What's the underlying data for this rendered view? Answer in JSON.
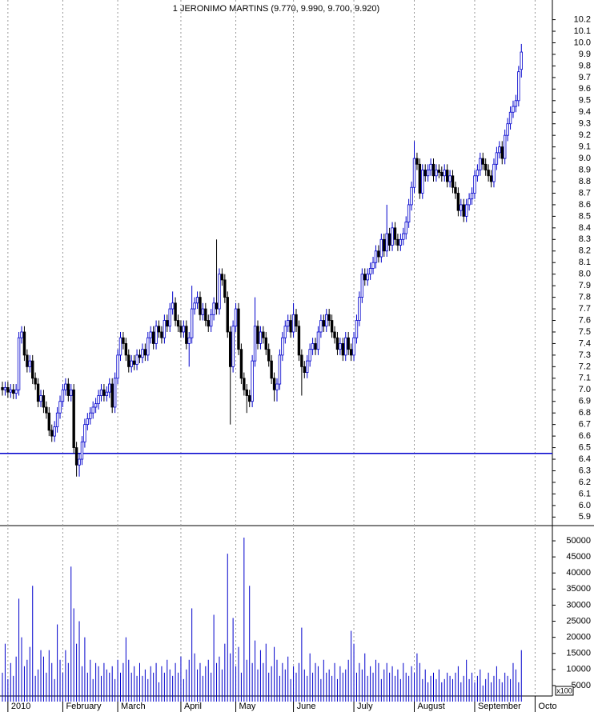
{
  "chart_data": {
    "type": "candlestick",
    "title": "1 JERONIMO MARTINS (9.770, 9.990, 9.700, 9.920)",
    "up_color": "#0000cc",
    "down_color": "#000000",
    "volume_color": "#0000cc",
    "reference_line": 6.45,
    "reference_color": "#0000cc",
    "open": [
      7.02,
      7.0,
      7.02,
      6.98,
      7.0,
      6.97,
      7.0,
      7.45,
      7.5,
      7.3,
      7.2,
      7.25,
      7.1,
      7.05,
      6.9,
      6.95,
      6.85,
      6.8,
      6.65,
      6.6,
      6.68,
      6.8,
      6.9,
      7.0,
      7.05,
      6.95,
      7.0,
      6.5,
      6.35,
      6.4,
      6.55,
      6.7,
      6.75,
      6.8,
      6.85,
      6.88,
      6.95,
      7.0,
      6.95,
      6.98,
      7.05,
      6.85,
      7.1,
      7.3,
      7.45,
      7.4,
      7.3,
      7.2,
      7.25,
      7.22,
      7.3,
      7.28,
      7.35,
      7.3,
      7.45,
      7.5,
      7.4,
      7.55,
      7.5,
      7.45,
      7.6,
      7.55,
      7.7,
      7.75,
      7.6,
      7.55,
      7.5,
      7.55,
      7.4,
      7.45,
      7.7,
      7.75,
      7.8,
      7.65,
      7.7,
      7.6,
      7.55,
      7.65,
      7.75,
      7.7,
      8.0,
      7.95,
      7.8,
      7.5,
      7.2,
      7.55,
      7.7,
      7.35,
      7.1,
      7.0,
      6.95,
      6.9,
      7.25,
      7.55,
      7.4,
      7.5,
      7.45,
      7.35,
      7.25,
      7.1,
      7.0,
      7.05,
      7.3,
      7.45,
      7.55,
      7.6,
      7.5,
      7.65,
      7.55,
      7.3,
      7.2,
      7.15,
      7.25,
      7.35,
      7.4,
      7.35,
      7.5,
      7.6,
      7.55,
      7.65,
      7.6,
      7.5,
      7.45,
      7.35,
      7.4,
      7.3,
      7.45,
      7.35,
      7.3,
      7.45,
      7.6,
      7.8,
      8.0,
      7.95,
      8.0,
      8.05,
      8.1,
      8.2,
      8.15,
      8.3,
      8.2,
      8.35,
      8.25,
      8.4,
      8.3,
      8.25,
      8.3,
      8.35,
      8.45,
      8.6,
      8.75,
      9.0,
      8.95,
      8.7,
      8.9,
      8.85,
      8.9,
      8.95,
      8.85,
      8.9,
      8.88,
      8.85,
      8.9,
      8.8,
      8.85,
      8.75,
      8.7,
      8.55,
      8.6,
      8.5,
      8.6,
      8.65,
      8.7,
      8.85,
      8.9,
      9.0,
      8.95,
      8.9,
      8.85,
      8.8,
      8.95,
      9.05,
      9.1,
      9.0,
      9.2,
      9.3,
      9.4,
      9.45,
      9.5,
      9.77
    ],
    "high": [
      7.07,
      7.07,
      7.07,
      7.05,
      7.05,
      7.05,
      7.5,
      7.55,
      7.55,
      7.35,
      7.3,
      7.3,
      7.15,
      7.1,
      7.0,
      7.0,
      6.9,
      6.85,
      6.7,
      6.73,
      6.85,
      6.95,
      7.05,
      7.1,
      7.1,
      7.05,
      7.05,
      6.55,
      6.45,
      6.6,
      6.75,
      6.8,
      6.85,
      6.9,
      6.93,
      7.0,
      7.05,
      7.05,
      7.03,
      7.1,
      7.1,
      7.15,
      7.35,
      7.5,
      7.5,
      7.45,
      7.35,
      7.3,
      7.3,
      7.35,
      7.35,
      7.4,
      7.4,
      7.5,
      7.55,
      7.55,
      7.6,
      7.6,
      7.55,
      7.65,
      7.65,
      7.75,
      7.85,
      7.8,
      7.65,
      7.6,
      7.6,
      7.6,
      7.5,
      7.9,
      7.8,
      7.85,
      7.85,
      7.75,
      7.75,
      7.65,
      7.7,
      7.8,
      8.3,
      8.05,
      8.05,
      8.0,
      7.85,
      7.55,
      7.6,
      7.75,
      7.75,
      7.4,
      7.15,
      7.05,
      7.0,
      7.3,
      7.8,
      7.6,
      7.55,
      7.55,
      7.5,
      7.4,
      7.3,
      7.15,
      7.1,
      7.35,
      7.5,
      7.6,
      7.65,
      7.65,
      7.75,
      7.7,
      7.6,
      7.35,
      7.25,
      7.3,
      7.4,
      7.45,
      7.45,
      7.55,
      7.65,
      7.65,
      7.7,
      7.7,
      7.65,
      7.55,
      7.5,
      7.45,
      7.45,
      7.5,
      7.5,
      7.4,
      7.5,
      7.65,
      7.85,
      8.05,
      8.05,
      8.05,
      8.1,
      8.15,
      8.25,
      8.25,
      8.35,
      8.35,
      8.6,
      8.4,
      8.45,
      8.45,
      8.35,
      8.35,
      8.4,
      8.5,
      8.65,
      8.8,
      9.15,
      9.05,
      9.0,
      8.95,
      8.95,
      8.95,
      9.0,
      9.0,
      8.95,
      8.95,
      8.93,
      8.95,
      8.95,
      8.9,
      8.9,
      8.8,
      8.75,
      8.65,
      8.65,
      8.65,
      8.7,
      8.75,
      8.9,
      8.95,
      9.05,
      9.05,
      9.0,
      8.95,
      8.9,
      9.0,
      9.1,
      9.15,
      9.15,
      9.25,
      9.35,
      9.45,
      9.5,
      9.55,
      9.8,
      9.99
    ],
    "low": [
      6.95,
      6.95,
      6.93,
      6.93,
      6.92,
      6.92,
      6.95,
      7.4,
      7.25,
      7.15,
      7.15,
      7.05,
      7.0,
      6.85,
      6.85,
      6.8,
      6.75,
      6.6,
      6.55,
      6.55,
      6.63,
      6.75,
      6.85,
      6.95,
      6.9,
      6.9,
      6.45,
      6.25,
      6.25,
      6.35,
      6.5,
      6.65,
      6.7,
      6.75,
      6.8,
      6.83,
      6.9,
      6.9,
      6.9,
      6.93,
      6.8,
      6.8,
      7.05,
      7.25,
      7.35,
      7.25,
      7.15,
      7.15,
      7.17,
      7.17,
      7.23,
      7.23,
      7.25,
      7.25,
      7.4,
      7.35,
      7.35,
      7.45,
      7.4,
      7.4,
      7.5,
      7.5,
      7.65,
      7.55,
      7.5,
      7.45,
      7.45,
      7.35,
      7.2,
      7.4,
      7.65,
      7.7,
      7.6,
      7.6,
      7.55,
      7.5,
      7.5,
      7.6,
      7.65,
      7.65,
      7.9,
      7.75,
      7.45,
      6.7,
      7.15,
      7.5,
      7.3,
      7.05,
      6.95,
      6.8,
      6.85,
      6.85,
      7.2,
      7.35,
      7.35,
      7.4,
      7.3,
      7.2,
      7.05,
      6.9,
      6.9,
      7.0,
      7.25,
      7.4,
      7.5,
      7.45,
      7.45,
      7.5,
      7.25,
      6.95,
      7.1,
      7.1,
      7.2,
      7.3,
      7.3,
      7.3,
      7.45,
      7.5,
      7.5,
      7.55,
      7.45,
      7.4,
      7.3,
      7.3,
      7.25,
      7.25,
      7.3,
      7.25,
      7.25,
      7.4,
      7.55,
      7.75,
      7.9,
      7.9,
      7.95,
      8.0,
      8.05,
      8.1,
      8.1,
      8.15,
      8.15,
      8.2,
      8.2,
      8.25,
      8.2,
      8.2,
      8.25,
      8.3,
      8.4,
      8.55,
      8.7,
      8.9,
      8.65,
      8.65,
      8.8,
      8.8,
      8.85,
      8.8,
      8.8,
      8.83,
      8.8,
      8.8,
      8.75,
      8.75,
      8.7,
      8.65,
      8.5,
      8.5,
      8.45,
      8.45,
      8.55,
      8.6,
      8.65,
      8.8,
      8.85,
      8.9,
      8.85,
      8.8,
      8.75,
      8.75,
      8.9,
      9.0,
      8.95,
      8.95,
      9.15,
      9.25,
      9.35,
      9.4,
      9.45,
      9.7
    ],
    "close": [
      7.0,
      7.02,
      6.98,
      7.0,
      6.97,
      7.0,
      7.45,
      7.5,
      7.3,
      7.2,
      7.25,
      7.1,
      7.05,
      6.9,
      6.95,
      6.85,
      6.8,
      6.65,
      6.6,
      6.68,
      6.8,
      6.9,
      7.0,
      7.05,
      6.95,
      7.0,
      6.5,
      6.35,
      6.4,
      6.55,
      6.7,
      6.75,
      6.8,
      6.85,
      6.88,
      6.95,
      7.0,
      6.95,
      6.98,
      7.05,
      6.85,
      7.1,
      7.3,
      7.45,
      7.4,
      7.3,
      7.2,
      7.25,
      7.22,
      7.3,
      7.28,
      7.35,
      7.3,
      7.45,
      7.5,
      7.4,
      7.55,
      7.5,
      7.45,
      7.6,
      7.55,
      7.7,
      7.75,
      7.6,
      7.55,
      7.5,
      7.55,
      7.4,
      7.45,
      7.7,
      7.75,
      7.8,
      7.65,
      7.7,
      7.6,
      7.55,
      7.65,
      7.75,
      7.7,
      8.0,
      7.95,
      7.8,
      7.5,
      7.2,
      7.55,
      7.7,
      7.35,
      7.1,
      7.0,
      6.95,
      6.9,
      7.25,
      7.55,
      7.4,
      7.5,
      7.45,
      7.35,
      7.25,
      7.1,
      7.0,
      7.05,
      7.3,
      7.45,
      7.55,
      7.6,
      7.5,
      7.65,
      7.55,
      7.3,
      7.2,
      7.15,
      7.25,
      7.35,
      7.4,
      7.35,
      7.5,
      7.6,
      7.55,
      7.65,
      7.6,
      7.5,
      7.45,
      7.35,
      7.4,
      7.3,
      7.45,
      7.35,
      7.3,
      7.45,
      7.6,
      7.8,
      8.0,
      7.95,
      8.0,
      8.05,
      8.1,
      8.2,
      8.15,
      8.3,
      8.2,
      8.35,
      8.25,
      8.4,
      8.3,
      8.25,
      8.3,
      8.35,
      8.45,
      8.6,
      8.75,
      9.0,
      8.95,
      8.7,
      8.9,
      8.85,
      8.9,
      8.95,
      8.85,
      8.9,
      8.88,
      8.85,
      8.9,
      8.8,
      8.85,
      8.75,
      8.7,
      8.55,
      8.6,
      8.5,
      8.6,
      8.65,
      8.7,
      8.85,
      8.9,
      9.0,
      8.95,
      8.9,
      8.85,
      8.8,
      8.95,
      9.05,
      9.1,
      9.0,
      9.2,
      9.3,
      9.4,
      9.45,
      9.5,
      9.75,
      9.92
    ],
    "volume": [
      9000,
      18000,
      7000,
      12000,
      8000,
      14000,
      32000,
      20000,
      11000,
      13000,
      17000,
      36000,
      8000,
      10000,
      16000,
      14000,
      9000,
      16000,
      12000,
      7000,
      24000,
      13000,
      9000,
      16000,
      12000,
      42000,
      29000,
      18000,
      25000,
      11000,
      20000,
      9000,
      13000,
      7000,
      12000,
      11000,
      8000,
      12000,
      10000,
      9000,
      11000,
      7000,
      13000,
      9000,
      12000,
      20000,
      13000,
      9000,
      11000,
      8000,
      12000,
      8000,
      10000,
      7000,
      11000,
      9000,
      12000,
      6000,
      11000,
      9000,
      13000,
      10000,
      8000,
      12000,
      9000,
      14000,
      7000,
      10000,
      13000,
      29000,
      15000,
      10000,
      12000,
      8000,
      11000,
      13000,
      9000,
      27000,
      12000,
      14000,
      10000,
      18000,
      46000,
      15000,
      26000,
      11000,
      17000,
      9000,
      51000,
      13000,
      36000,
      12000,
      19000,
      10000,
      16000,
      12000,
      18000,
      9000,
      11000,
      17000,
      13000,
      8000,
      12000,
      10000,
      14000,
      7000,
      11000,
      9000,
      12000,
      23000,
      10000,
      8000,
      15000,
      9000,
      12000,
      11000,
      7000,
      13000,
      9000,
      10000,
      8000,
      12000,
      7000,
      11000,
      9000,
      10000,
      13000,
      22000,
      18000,
      9000,
      12000,
      10000,
      15000,
      8000,
      11000,
      9000,
      13000,
      12000,
      7000,
      10000,
      12000,
      9000,
      11000,
      8000,
      10000,
      7000,
      12000,
      9000,
      8000,
      11000,
      9000,
      15000,
      12000,
      7000,
      10000,
      6000,
      8000,
      9000,
      7000,
      10000,
      6000,
      7000,
      9000,
      8000,
      7000,
      9000,
      11000,
      6000,
      8000,
      13000,
      7000,
      9000,
      6000,
      8000,
      10000,
      5000,
      7000,
      9000,
      6000,
      8000,
      11000,
      7000,
      6000,
      9000,
      8000,
      7000,
      12000,
      10000,
      6000,
      16000
    ],
    "ylim": [
      5.84,
      10.37
    ],
    "yticks": [
      5.9,
      {
        "value": 6.0,
        "label": "6.0"
      },
      6.1,
      6.2,
      6.3,
      6.4,
      6.5,
      6.6,
      6.7,
      6.8,
      6.9,
      {
        "value": 7.0,
        "label": "7.0"
      },
      7.1,
      7.2,
      7.3,
      7.4,
      7.5,
      7.6,
      7.7,
      7.8,
      7.9,
      {
        "value": 8.0,
        "label": "8.0"
      },
      8.1,
      8.2,
      8.3,
      8.4,
      8.5,
      8.6,
      8.7,
      8.8,
      8.9,
      {
        "value": 9.0,
        "label": "9.0"
      },
      9.1,
      9.2,
      9.3,
      9.4,
      9.5,
      9.6,
      9.7,
      9.8,
      9.9,
      {
        "value": 10.0,
        "label": "10.0"
      },
      10.1,
      10.2
    ],
    "volume_ylim": [
      0,
      52000
    ],
    "volume_yticks": [
      5000,
      10000,
      15000,
      20000,
      25000,
      30000,
      35000,
      40000,
      45000,
      50000
    ],
    "volume_unit_label": "x100",
    "xticks": [
      {
        "value": 2,
        "label": "2010"
      },
      {
        "value": 22,
        "label": "February"
      },
      {
        "value": 42,
        "label": "March"
      },
      {
        "value": 65,
        "label": "April"
      },
      {
        "value": 85,
        "label": "May"
      },
      {
        "value": 106,
        "label": "June"
      },
      {
        "value": 128,
        "label": "July"
      },
      {
        "value": 150,
        "label": "August"
      },
      {
        "value": 172,
        "label": "September"
      },
      {
        "value": 194,
        "label": "Octo"
      }
    ]
  }
}
